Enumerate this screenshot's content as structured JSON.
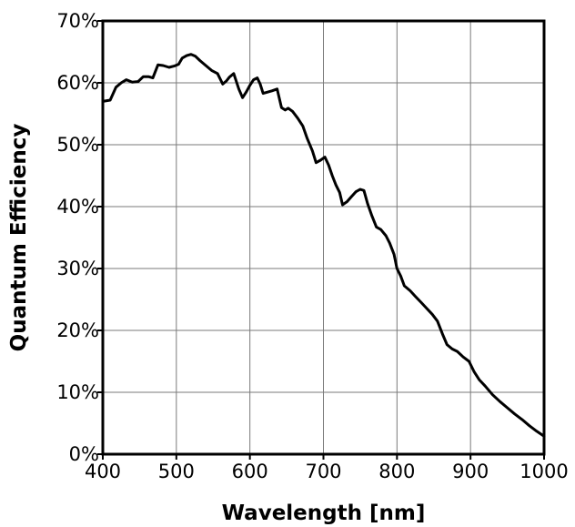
{
  "chart_data": [
    {
      "type": "line",
      "title": "",
      "xlabel": "Wavelength [nm]",
      "ylabel": "Quantum Efficiency",
      "xlim": [
        400,
        1000
      ],
      "ylim": [
        0,
        70
      ],
      "x_ticks": [
        400,
        500,
        600,
        700,
        800,
        900,
        1000
      ],
      "y_ticks": [
        0,
        10,
        20,
        30,
        40,
        50,
        60,
        70
      ],
      "x_tick_labels": [
        "400",
        "500",
        "600",
        "700",
        "800",
        "900",
        "1000"
      ],
      "y_tick_labels": [
        "0%",
        "10%",
        "20%",
        "30%",
        "40%",
        "50%",
        "60%",
        "70%"
      ],
      "grid": true,
      "series": [
        {
          "color": "#000000",
          "x": [
            400,
            410,
            418,
            425,
            432,
            440,
            448,
            455,
            462,
            468,
            475,
            482,
            490,
            497,
            503,
            508,
            514,
            520,
            526,
            532,
            540,
            548,
            556,
            563,
            568,
            572,
            578,
            585,
            590,
            595,
            600,
            605,
            610,
            614,
            618,
            624,
            630,
            637,
            643,
            648,
            652,
            658,
            665,
            672,
            678,
            685,
            690,
            696,
            702,
            707,
            712,
            717,
            722,
            726,
            732,
            738,
            744,
            750,
            755,
            760,
            766,
            772,
            778,
            785,
            790,
            796,
            800,
            805,
            810,
            818,
            825,
            833,
            840,
            848,
            855,
            862,
            868,
            875,
            882,
            890,
            898,
            905,
            912,
            920,
            930,
            940,
            950,
            960,
            970,
            980,
            990,
            1000
          ],
          "values": [
            57.0,
            57.2,
            59.3,
            60.0,
            60.5,
            60.1,
            60.2,
            61.0,
            61.0,
            60.8,
            62.9,
            62.8,
            62.5,
            62.7,
            63.0,
            64.0,
            64.4,
            64.6,
            64.3,
            63.6,
            62.8,
            62.0,
            61.5,
            59.8,
            60.3,
            60.9,
            61.5,
            59.0,
            57.6,
            58.5,
            59.6,
            60.5,
            60.8,
            59.8,
            58.3,
            58.5,
            58.7,
            59.0,
            56.0,
            55.6,
            55.9,
            55.4,
            54.3,
            53.0,
            51.0,
            49.0,
            47.1,
            47.5,
            48.0,
            46.7,
            45.0,
            43.5,
            42.3,
            40.3,
            40.8,
            41.6,
            42.4,
            42.8,
            42.6,
            40.5,
            38.5,
            36.7,
            36.3,
            35.3,
            34.1,
            32.3,
            30.0,
            28.8,
            27.2,
            26.4,
            25.5,
            24.5,
            23.6,
            22.6,
            21.5,
            19.4,
            17.7,
            17.0,
            16.6,
            15.7,
            15.0,
            13.3,
            12.0,
            11.0,
            9.6,
            8.5,
            7.5,
            6.5,
            5.6,
            4.6,
            3.7,
            2.9
          ]
        }
      ]
    }
  ]
}
